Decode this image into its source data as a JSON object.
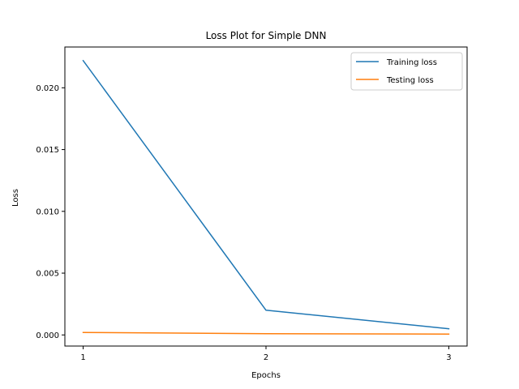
{
  "chart_data": {
    "type": "line",
    "title": "Loss Plot for Simple DNN",
    "xlabel": "Epochs",
    "ylabel": "Loss",
    "x": [
      1,
      2,
      3
    ],
    "x_ticks": [
      "1",
      "2",
      "3"
    ],
    "y_ticks": [
      "0.000",
      "0.005",
      "0.010",
      "0.015",
      "0.020"
    ],
    "y_tick_values": [
      0.0,
      0.005,
      0.01,
      0.015,
      0.02
    ],
    "xlim": [
      0.9,
      3.1
    ],
    "ylim": [
      -0.0009,
      0.0233
    ],
    "grid": false,
    "legend_position": "top-right",
    "series": [
      {
        "name": "Training loss",
        "color": "#1f77b4",
        "values": [
          0.0222,
          0.002,
          0.0005
        ]
      },
      {
        "name": "Testing loss",
        "color": "#ff7f0e",
        "values": [
          0.0002,
          0.0001,
          7e-05
        ]
      }
    ]
  }
}
